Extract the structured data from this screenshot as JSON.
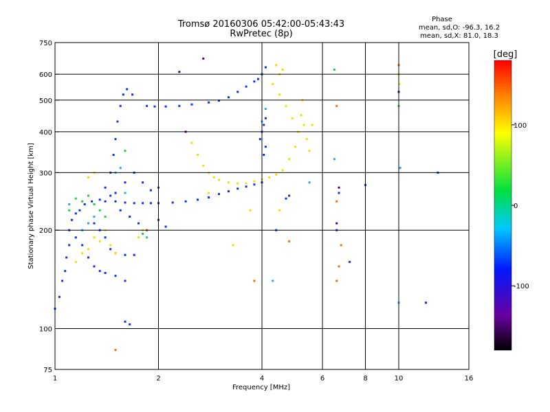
{
  "chart_data": {
    "type": "scatter",
    "title": "Tromsø 20160306 05:42:00-05:43:43",
    "subtitle": "RwPretec (8p)",
    "xlabel": "Frequency [MHz]",
    "ylabel": "Stationary phase Virtual Height [km]",
    "x_scale": "log",
    "y_scale": "log",
    "xlim": [
      1,
      16
    ],
    "ylim": [
      75,
      750
    ],
    "x_ticks": [
      1,
      2,
      4,
      6,
      8,
      10,
      16
    ],
    "y_ticks": [
      75,
      100,
      200,
      300,
      400,
      500,
      600,
      750
    ],
    "x_grid": [
      1,
      2,
      4,
      6,
      8,
      10,
      16
    ],
    "y_grid": [
      100,
      200,
      300,
      400,
      500,
      600
    ],
    "phase_info": {
      "heading": "Phase",
      "line_o": "mean, sd,O: -96.3, 16.2",
      "line_x": "mean, sd,X: 81.0, 18.3"
    },
    "colorbar": {
      "label": "[deg]",
      "range": [
        -180,
        180
      ],
      "ticks": [
        100,
        0,
        -100
      ],
      "colormap": "rainbow (black-violet-blue-cyan-green-yellow-red)"
    },
    "series": [
      {
        "phase": -96,
        "color": "#1030f0",
        "points": [
          [
            1.0,
            115
          ],
          [
            1.03,
            125
          ],
          [
            1.05,
            140
          ],
          [
            1.07,
            150
          ],
          [
            1.08,
            165
          ],
          [
            1.1,
            180
          ],
          [
            1.1,
            200
          ],
          [
            1.12,
            215
          ],
          [
            1.15,
            225
          ],
          [
            1.18,
            230
          ],
          [
            1.22,
            240
          ],
          [
            1.28,
            245
          ],
          [
            1.35,
            248
          ],
          [
            1.4,
            245
          ],
          [
            1.5,
            245
          ],
          [
            1.6,
            243
          ],
          [
            1.7,
            242
          ],
          [
            1.8,
            242
          ],
          [
            1.9,
            242
          ],
          [
            2.0,
            242
          ],
          [
            2.2,
            243
          ],
          [
            2.4,
            245
          ],
          [
            2.6,
            248
          ],
          [
            2.8,
            252
          ],
          [
            3.0,
            258
          ],
          [
            3.2,
            263
          ],
          [
            3.4,
            268
          ],
          [
            3.6,
            272
          ],
          [
            3.8,
            276
          ],
          [
            4.0,
            280
          ],
          [
            1.45,
            300
          ],
          [
            1.48,
            340
          ],
          [
            1.5,
            380
          ],
          [
            1.52,
            430
          ],
          [
            1.55,
            480
          ],
          [
            1.58,
            520
          ],
          [
            1.62,
            540
          ],
          [
            1.68,
            520
          ],
          [
            1.85,
            480
          ],
          [
            1.95,
            478
          ],
          [
            2.1,
            478
          ],
          [
            2.3,
            480
          ],
          [
            2.5,
            485
          ],
          [
            2.8,
            492
          ],
          [
            3.0,
            498
          ],
          [
            3.2,
            510
          ],
          [
            3.4,
            530
          ],
          [
            3.6,
            550
          ],
          [
            3.8,
            570
          ],
          [
            3.9,
            580
          ],
          [
            4.0,
            600
          ],
          [
            4.1,
            630
          ],
          [
            3.95,
            380
          ],
          [
            4.0,
            400
          ],
          [
            4.05,
            420
          ],
          [
            4.1,
            440
          ],
          [
            4.1,
            360
          ],
          [
            4.05,
            340
          ],
          [
            1.3,
            210
          ],
          [
            1.35,
            200
          ],
          [
            1.4,
            190
          ],
          [
            1.45,
            175
          ],
          [
            1.5,
            170
          ],
          [
            1.6,
            168
          ],
          [
            1.7,
            168
          ],
          [
            1.2,
            180
          ],
          [
            1.25,
            165
          ],
          [
            1.3,
            155
          ],
          [
            1.35,
            150
          ],
          [
            1.4,
            148
          ],
          [
            1.5,
            145
          ],
          [
            1.6,
            140
          ],
          [
            1.15,
            190
          ],
          [
            1.5,
            260
          ],
          [
            1.6,
            280
          ],
          [
            1.7,
            300
          ],
          [
            1.8,
            280
          ],
          [
            1.9,
            265
          ],
          [
            2.0,
            270
          ],
          [
            1.55,
            230
          ],
          [
            1.65,
            220
          ],
          [
            1.75,
            210
          ],
          [
            1.85,
            200
          ],
          [
            2.0,
            215
          ],
          [
            2.1,
            205
          ],
          [
            1.4,
            270
          ],
          [
            1.45,
            255
          ],
          [
            1.6,
            105
          ],
          [
            1.65,
            103
          ],
          [
            4.7,
            250
          ],
          [
            4.8,
            255
          ],
          [
            6.7,
            260
          ],
          [
            8.0,
            275
          ],
          [
            4.4,
            200
          ],
          [
            6.6,
            200
          ],
          [
            7.2,
            160
          ],
          [
            12.0,
            120
          ],
          [
            13.0,
            300
          ]
        ]
      },
      {
        "phase": -30,
        "color": "#30a0ff",
        "points": [
          [
            1.2,
            200
          ],
          [
            1.25,
            210
          ],
          [
            1.3,
            220
          ],
          [
            1.5,
            300
          ],
          [
            1.55,
            310
          ],
          [
            1.6,
            260
          ],
          [
            1.1,
            240
          ],
          [
            4.3,
            140
          ],
          [
            5.5,
            280
          ],
          [
            6.5,
            330
          ],
          [
            10.0,
            120
          ],
          [
            10.1,
            310
          ],
          [
            4.0,
            430
          ],
          [
            4.1,
            470
          ]
        ]
      },
      {
        "phase": 40,
        "color": "#20d040",
        "points": [
          [
            1.2,
            245
          ],
          [
            1.25,
            255
          ],
          [
            1.3,
            240
          ],
          [
            1.35,
            230
          ],
          [
            1.4,
            220
          ],
          [
            1.15,
            250
          ],
          [
            1.1,
            230
          ],
          [
            1.8,
            195
          ],
          [
            1.85,
            190
          ],
          [
            6.5,
            620
          ],
          [
            10.0,
            480
          ],
          [
            1.6,
            350
          ]
        ]
      },
      {
        "phase": 81,
        "color": "#f0e000",
        "points": [
          [
            2.5,
            370
          ],
          [
            2.6,
            340
          ],
          [
            2.7,
            315
          ],
          [
            2.8,
            300
          ],
          [
            2.9,
            290
          ],
          [
            3.0,
            285
          ],
          [
            3.2,
            280
          ],
          [
            3.4,
            278
          ],
          [
            3.6,
            278
          ],
          [
            3.8,
            282
          ],
          [
            4.0,
            286
          ],
          [
            4.2,
            290
          ],
          [
            4.4,
            296
          ],
          [
            4.6,
            305
          ],
          [
            4.8,
            330
          ],
          [
            5.0,
            360
          ],
          [
            5.1,
            400
          ],
          [
            5.2,
            450
          ],
          [
            5.25,
            500
          ],
          [
            5.3,
            420
          ],
          [
            5.4,
            380
          ],
          [
            5.5,
            350
          ],
          [
            4.9,
            440
          ],
          [
            4.7,
            480
          ],
          [
            4.5,
            520
          ],
          [
            4.3,
            560
          ],
          [
            4.5,
            600
          ],
          [
            4.6,
            620
          ],
          [
            4.4,
            640
          ],
          [
            1.3,
            190
          ],
          [
            1.35,
            185
          ],
          [
            1.4,
            200
          ],
          [
            1.45,
            180
          ],
          [
            1.5,
            170
          ],
          [
            1.25,
            175
          ],
          [
            1.2,
            170
          ],
          [
            1.15,
            160
          ],
          [
            1.75,
            190
          ],
          [
            1.8,
            200
          ],
          [
            5.6,
            420
          ],
          [
            10.0,
            600
          ],
          [
            10.05,
            560
          ],
          [
            1.3,
            300
          ],
          [
            1.25,
            290
          ],
          [
            3.3,
            180
          ],
          [
            2.8,
            260
          ],
          [
            3.7,
            230
          ],
          [
            4.5,
            230
          ]
        ]
      },
      {
        "phase": 140,
        "color": "#f07010",
        "points": [
          [
            6.6,
            480
          ],
          [
            6.6,
            245
          ],
          [
            6.7,
            155
          ],
          [
            6.8,
            180
          ],
          [
            4.8,
            185
          ],
          [
            1.85,
            200
          ],
          [
            10.0,
            640
          ],
          [
            3.8,
            140
          ],
          [
            1.5,
            86
          ],
          [
            6.6,
            140
          ]
        ]
      },
      {
        "phase": -160,
        "color": "#500070",
        "points": [
          [
            2.4,
            400
          ],
          [
            2.7,
            670
          ],
          [
            2.3,
            610
          ],
          [
            10.0,
            530
          ],
          [
            6.7,
            270
          ],
          [
            6.6,
            210
          ]
        ]
      }
    ]
  }
}
